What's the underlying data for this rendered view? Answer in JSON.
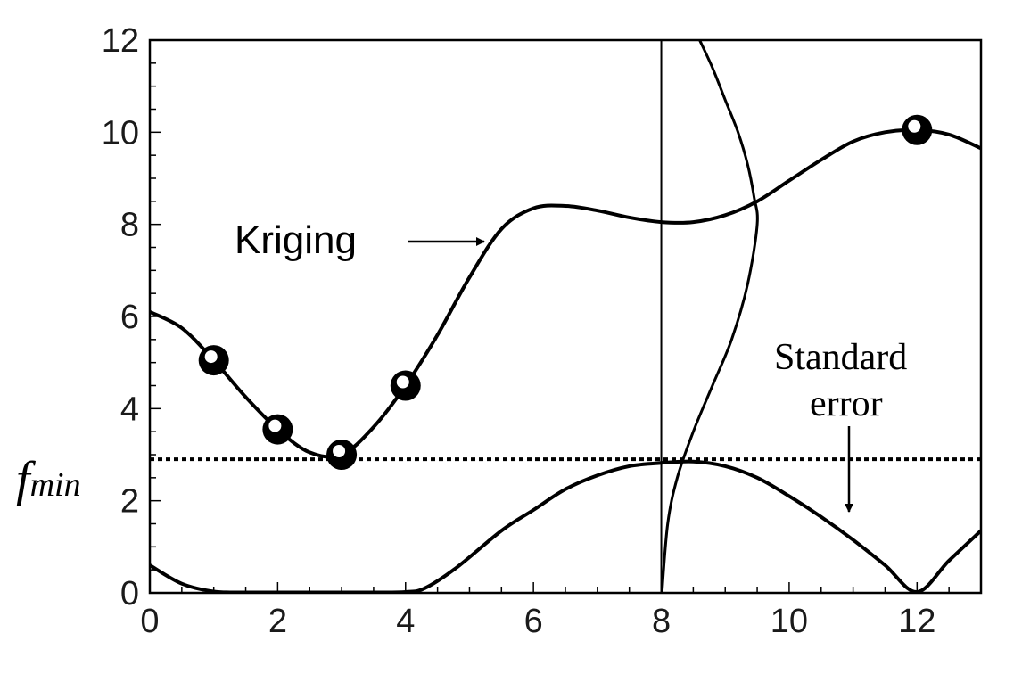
{
  "chart_data": {
    "type": "line",
    "title": "",
    "xlabel": "",
    "ylabel": "",
    "xlim": [
      0,
      13
    ],
    "ylim": [
      0,
      12
    ],
    "x_ticks": [
      0,
      2,
      4,
      6,
      8,
      10,
      12
    ],
    "y_ticks": [
      0,
      2,
      4,
      6,
      8,
      10,
      12
    ],
    "x_tick_labels": [
      "0",
      "2",
      "4",
      "6",
      "8",
      "10",
      "12"
    ],
    "y_tick_labels": [
      "0",
      "2",
      "4",
      "6",
      "8",
      "10",
      "12"
    ],
    "grid": false,
    "series": [
      {
        "kind": "kriging",
        "x": [
          0,
          0.5,
          1,
          1.5,
          2,
          2.5,
          3,
          3.5,
          4,
          4.5,
          5,
          5.5,
          6,
          6.5,
          7,
          7.5,
          8,
          8.5,
          9,
          9.5,
          10,
          10.5,
          11,
          11.5,
          12,
          12.5,
          13
        ],
        "y": [
          6.1,
          5.75,
          5.05,
          4.25,
          3.55,
          3.05,
          3.0,
          3.6,
          4.5,
          5.6,
          6.85,
          7.9,
          8.35,
          8.4,
          8.3,
          8.15,
          8.05,
          8.05,
          8.2,
          8.5,
          8.95,
          9.4,
          9.8,
          10.0,
          10.05,
          9.95,
          9.65
        ]
      },
      {
        "kind": "standard-error",
        "x": [
          0,
          0.5,
          1,
          1.5,
          2,
          2.5,
          3,
          3.5,
          4,
          4.3,
          4.8,
          5.5,
          6,
          6.5,
          7,
          7.5,
          8,
          8.5,
          9,
          9.5,
          10,
          10.5,
          11,
          11.5,
          12,
          12.5,
          13
        ],
        "y": [
          0.6,
          0.2,
          0.03,
          0.01,
          0.01,
          0.01,
          0.01,
          0.01,
          0.02,
          0.1,
          0.55,
          1.35,
          1.8,
          2.25,
          2.55,
          2.75,
          2.82,
          2.85,
          2.75,
          2.5,
          2.1,
          1.65,
          1.15,
          0.6,
          0.02,
          0.7,
          1.35
        ]
      },
      {
        "kind": "error-distribution",
        "x": [
          8.01,
          8.1,
          8.25,
          8.5,
          8.8,
          9.1,
          9.35,
          9.5,
          9.45,
          9.35,
          9.2,
          9.0,
          8.8,
          8.6
        ],
        "y": [
          0,
          1.5,
          2.5,
          3.5,
          4.5,
          5.5,
          6.7,
          8.0,
          8.6,
          9.3,
          10.0,
          10.7,
          11.4,
          12.0
        ]
      }
    ],
    "sample_points": {
      "x": [
        1,
        2,
        3,
        4,
        12
      ],
      "y": [
        5.05,
        3.55,
        3.0,
        4.5,
        10.05
      ]
    },
    "fmin": 2.9,
    "vertical_line_x": 8,
    "annotations": {
      "kriging_label": "Kriging",
      "standard_error_label_line1": "Standard",
      "standard_error_label_line2": "error",
      "fmin_label_main": "f",
      "fmin_label_sub": "min"
    }
  }
}
